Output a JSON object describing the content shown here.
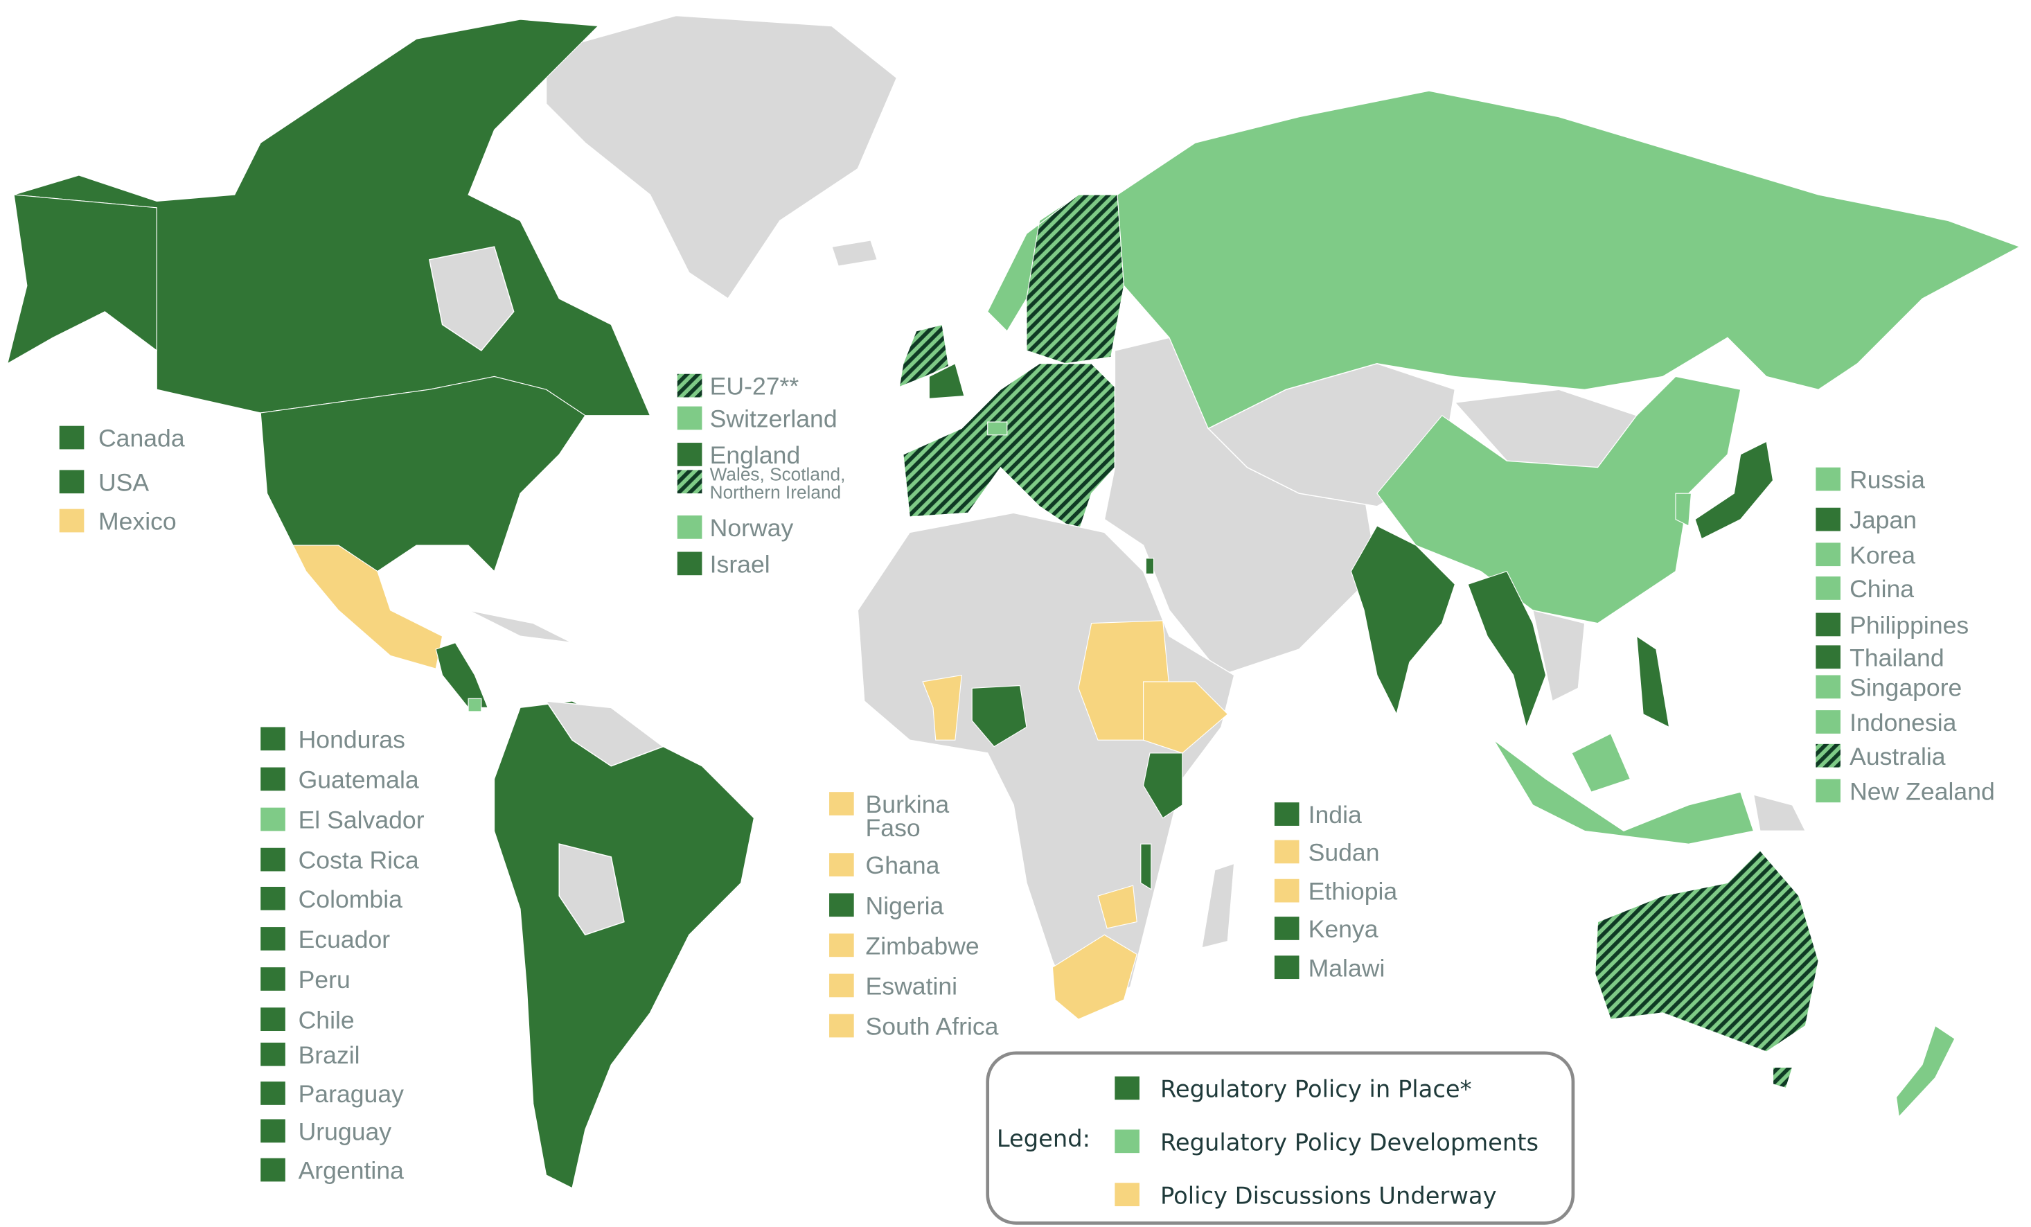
{
  "colors": {
    "policy_in_place": "#317535",
    "policy_developments": "#7fcb87",
    "discussions_underway": "#f7d57f",
    "no_data": "#d9d9d9",
    "hatch": "diagonal stripes dark green / light green"
  },
  "groups": {
    "north_america": [
      {
        "label": "Canada",
        "status": "policy_in_place"
      },
      {
        "label": "USA",
        "status": "policy_in_place"
      },
      {
        "label": "Mexico",
        "status": "discussions_underway"
      }
    ],
    "europe": [
      {
        "label": "EU-27**",
        "status": "hatched"
      },
      {
        "label": "Switzerland",
        "status": "policy_developments"
      },
      {
        "label": "England",
        "status": "policy_in_place"
      },
      {
        "label": "Wales, Scotland,",
        "label2": "Northern Ireland",
        "status": "hatched"
      },
      {
        "label": "Norway",
        "status": "policy_developments"
      },
      {
        "label": "Israel",
        "status": "policy_in_place"
      }
    ],
    "latin_america": [
      {
        "label": "Honduras",
        "status": "policy_in_place"
      },
      {
        "label": "Guatemala",
        "status": "policy_in_place"
      },
      {
        "label": "El Salvador",
        "status": "policy_developments"
      },
      {
        "label": "Costa Rica",
        "status": "policy_in_place"
      },
      {
        "label": "Colombia",
        "status": "policy_in_place"
      },
      {
        "label": "Ecuador",
        "status": "policy_in_place"
      },
      {
        "label": "Peru",
        "status": "policy_in_place"
      },
      {
        "label": "Chile",
        "status": "policy_in_place"
      },
      {
        "label": "Brazil",
        "status": "policy_in_place"
      },
      {
        "label": "Paraguay",
        "status": "policy_in_place"
      },
      {
        "label": "Uruguay",
        "status": "policy_in_place"
      },
      {
        "label": "Argentina",
        "status": "policy_in_place"
      }
    ],
    "west_south_africa": [
      {
        "label": "Burkina",
        "label2": "Faso",
        "status": "discussions_underway"
      },
      {
        "label": "Ghana",
        "status": "discussions_underway"
      },
      {
        "label": "Nigeria",
        "status": "policy_in_place"
      },
      {
        "label": "Zimbabwe",
        "status": "discussions_underway"
      },
      {
        "label": "Eswatini",
        "status": "discussions_underway"
      },
      {
        "label": "South Africa",
        "status": "discussions_underway"
      }
    ],
    "east_africa_india": [
      {
        "label": "India",
        "status": "policy_in_place"
      },
      {
        "label": "Sudan",
        "status": "discussions_underway"
      },
      {
        "label": "Ethiopia",
        "status": "discussions_underway"
      },
      {
        "label": "Kenya",
        "status": "policy_in_place"
      },
      {
        "label": "Malawi",
        "status": "policy_in_place"
      }
    ],
    "asia_pacific": [
      {
        "label": "Russia",
        "status": "policy_developments"
      },
      {
        "label": "Japan",
        "status": "policy_in_place"
      },
      {
        "label": "Korea",
        "status": "policy_developments"
      },
      {
        "label": "China",
        "status": "policy_developments"
      },
      {
        "label": "Philippines",
        "status": "policy_in_place"
      },
      {
        "label": "Thailand",
        "status": "policy_in_place"
      },
      {
        "label": "Singapore",
        "status": "policy_developments"
      },
      {
        "label": "Indonesia",
        "status": "policy_developments"
      },
      {
        "label": "Australia",
        "status": "hatched"
      },
      {
        "label": "New Zealand",
        "status": "policy_developments"
      }
    ]
  },
  "legend": {
    "title": "Legend:",
    "items": [
      {
        "label": "Regulatory Policy in Place*",
        "status": "policy_in_place"
      },
      {
        "label": "Regulatory Policy Developments",
        "status": "policy_developments"
      },
      {
        "label": "Policy Discussions Underway",
        "status": "discussions_underway"
      }
    ]
  }
}
